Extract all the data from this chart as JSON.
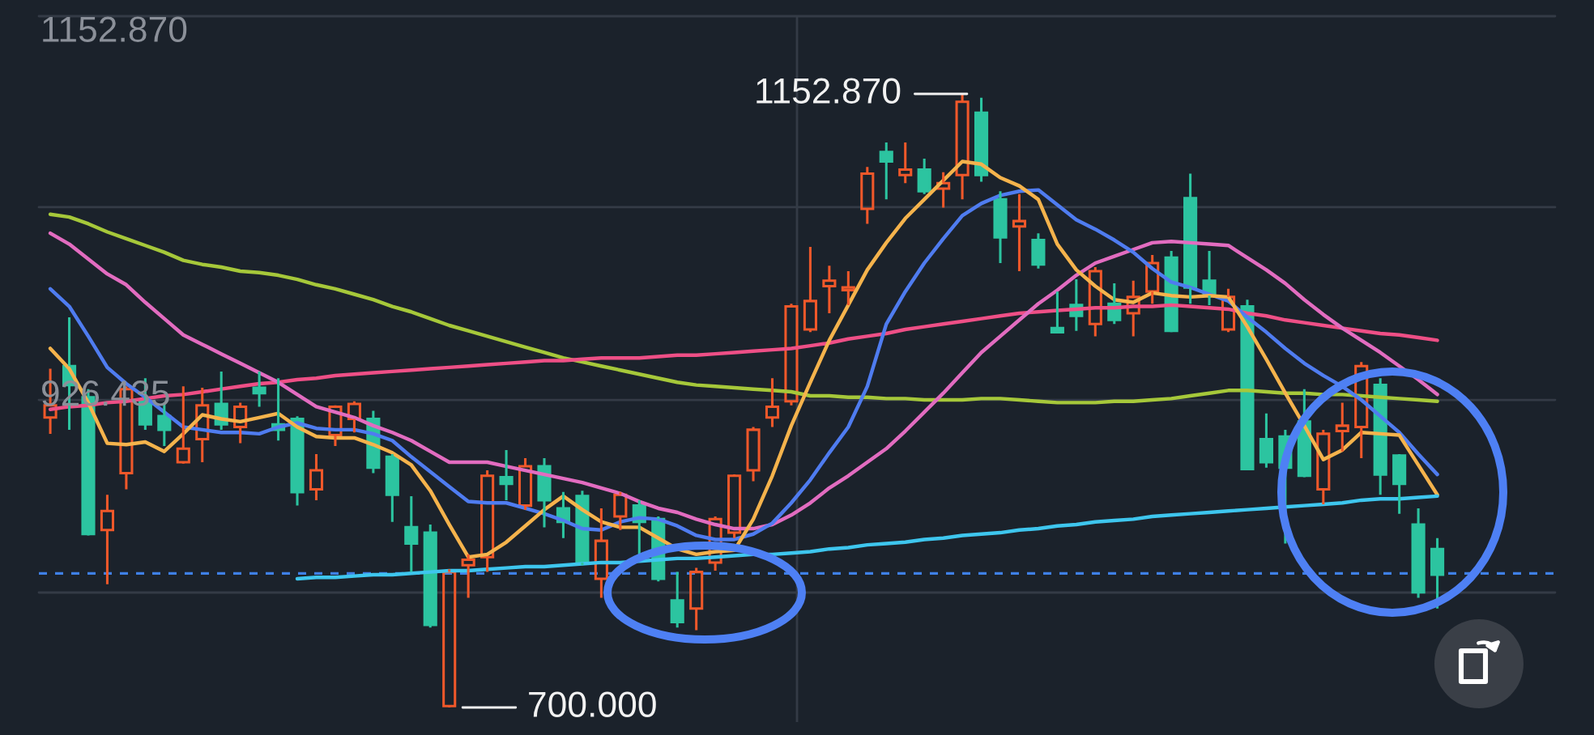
{
  "chart_data": {
    "type": "candlestick",
    "categories": [
      null,
      null,
      null,
      null,
      null,
      null,
      null,
      null,
      null,
      null,
      null,
      null,
      null,
      null,
      null,
      null,
      null,
      null,
      null,
      null,
      null,
      null,
      null,
      null,
      null,
      null,
      null,
      null,
      null,
      null,
      null,
      null,
      null,
      null,
      null,
      null,
      null,
      null,
      null,
      null,
      null,
      null,
      null,
      null,
      null,
      null,
      null,
      null,
      null,
      null,
      null,
      null,
      null,
      null,
      null,
      null,
      null,
      null,
      null,
      null,
      null,
      null,
      null,
      null,
      null,
      null,
      null,
      null,
      null,
      null,
      null,
      null,
      null,
      null
    ],
    "ohlc": [
      [
        914,
        950,
        902,
        923
      ],
      [
        952,
        988,
        905,
        938
      ],
      [
        929,
        935,
        827,
        828
      ],
      [
        831,
        857,
        791,
        845
      ],
      [
        873,
        937,
        861,
        935
      ],
      [
        926,
        943,
        905,
        909
      ],
      [
        915,
        925,
        893,
        905
      ],
      [
        881,
        937,
        880,
        891
      ],
      [
        898,
        936,
        881,
        923
      ],
      [
        924,
        948,
        905,
        909
      ],
      [
        907,
        925,
        895,
        922
      ],
      [
        936,
        948,
        922,
        932
      ],
      [
        909,
        943,
        897,
        905
      ],
      [
        913,
        915,
        849,
        859
      ],
      [
        861,
        887,
        853,
        875
      ],
      [
        901,
        923,
        893,
        922
      ],
      [
        913,
        926,
        903,
        924
      ],
      [
        913,
        919,
        873,
        877
      ],
      [
        885,
        887,
        837,
        857
      ],
      [
        833,
        856,
        800,
        821
      ],
      [
        829,
        835,
        759,
        761
      ],
      [
        701,
        802,
        700,
        800
      ],
      [
        805,
        813,
        781,
        809
      ],
      [
        811,
        875,
        800,
        871
      ],
      [
        870,
        890,
        853,
        865
      ],
      [
        849,
        884,
        846,
        878
      ],
      [
        878,
        884,
        833,
        853
      ],
      [
        847,
        859,
        825,
        837
      ],
      [
        856,
        860,
        805,
        807
      ],
      [
        795,
        847,
        781,
        823
      ],
      [
        841,
        859,
        831,
        857
      ],
      [
        849,
        853,
        811,
        837
      ],
      [
        839,
        841,
        793,
        795
      ],
      [
        779,
        800,
        759,
        763
      ],
      [
        773,
        803,
        757,
        800
      ],
      [
        807,
        841,
        801,
        839
      ],
      [
        829,
        872,
        825,
        871
      ],
      [
        875,
        907,
        867,
        905
      ],
      [
        914,
        943,
        907,
        922
      ],
      [
        926,
        998,
        923,
        996
      ],
      [
        979,
        1040,
        977,
        1000
      ],
      [
        1011,
        1026,
        991,
        1015
      ],
      [
        1008,
        1022,
        997,
        1010
      ],
      [
        1068,
        1099,
        1057,
        1094
      ],
      [
        1110,
        1117,
        1075,
        1103
      ],
      [
        1093,
        1117,
        1087,
        1097
      ],
      [
        1097,
        1105,
        1079,
        1081
      ],
      [
        1083,
        1095,
        1069,
        1087
      ],
      [
        1093,
        1152.87,
        1075,
        1147
      ],
      [
        1139,
        1150,
        1088,
        1093
      ],
      [
        1075,
        1081,
        1028,
        1047
      ],
      [
        1055,
        1079,
        1022,
        1059
      ],
      [
        1045,
        1050,
        1024,
        1027
      ],
      [
        980,
        1007,
        976,
        977
      ],
      [
        997,
        1016,
        978,
        989
      ],
      [
        983,
        1025,
        974,
        1022
      ],
      [
        998,
        1013,
        983,
        986
      ],
      [
        991,
        1015,
        974,
        1003
      ],
      [
        1007,
        1034,
        998,
        1028
      ],
      [
        1032,
        1037,
        977,
        978
      ],
      [
        1076,
        1094,
        998,
        1010
      ],
      [
        1015,
        1037,
        997,
        1004
      ],
      [
        979,
        1009,
        977,
        1003
      ],
      [
        996,
        1001,
        875,
        876
      ],
      [
        898,
        917,
        877,
        881
      ],
      [
        900,
        905,
        821,
        877
      ],
      [
        911,
        935,
        870,
        871
      ],
      [
        861,
        905,
        850,
        902
      ],
      [
        904,
        925,
        889,
        908
      ],
      [
        907,
        955,
        884,
        952
      ],
      [
        938,
        943,
        857,
        872
      ],
      [
        886,
        887,
        843,
        865
      ],
      [
        835,
        847,
        781,
        785
      ],
      [
        817,
        825,
        773,
        798
      ]
    ],
    "colors": [
      "#f0582a",
      "#2cc4a0",
      "#2cc4a0",
      "#f0582a",
      "#f0582a",
      "#2cc4a0",
      "#2cc4a0",
      "#f0582a",
      "#f0582a",
      "#2cc4a0",
      "#f0582a",
      "#2cc4a0",
      "#2cc4a0",
      "#2cc4a0",
      "#f0582a",
      "#f0582a",
      "#f0582a",
      "#2cc4a0",
      "#2cc4a0",
      "#2cc4a0",
      "#2cc4a0",
      "#f0582a",
      "#f0582a",
      "#f0582a",
      "#2cc4a0",
      "#f0582a",
      "#2cc4a0",
      "#2cc4a0",
      "#2cc4a0",
      "#f0582a",
      "#f0582a",
      "#2cc4a0",
      "#2cc4a0",
      "#2cc4a0",
      "#f0582a",
      "#f0582a",
      "#f0582a",
      "#f0582a",
      "#f0582a",
      "#f0582a",
      "#f0582a",
      "#f0582a",
      "#f0582a",
      "#f0582a",
      "#2cc4a0",
      "#f0582a",
      "#2cc4a0",
      "#f0582a",
      "#f0582a",
      "#2cc4a0",
      "#2cc4a0",
      "#f0582a",
      "#2cc4a0",
      "#2cc4a0",
      "#2cc4a0",
      "#f0582a",
      "#2cc4a0",
      "#f0582a",
      "#f0582a",
      "#2cc4a0",
      "#2cc4a0",
      "#2cc4a0",
      "#f0582a",
      "#2cc4a0",
      "#2cc4a0",
      "#2cc4a0",
      "#2cc4a0",
      "#f0582a",
      "#f0582a",
      "#f0582a",
      "#2cc4a0",
      "#2cc4a0",
      "#2cc4a0",
      "#2cc4a0"
    ],
    "series": [
      {
        "type": "line",
        "color": "#a6c83a",
        "values": [
          1064,
          1062,
          1057,
          1051,
          1046,
          1041,
          1036,
          1030,
          1027,
          1025,
          1022,
          1021,
          1019,
          1016,
          1012,
          1009,
          1005,
          1001,
          996,
          992,
          987,
          982,
          978,
          974,
          970,
          966,
          962,
          958,
          955,
          952,
          949,
          946,
          943,
          940,
          938,
          937,
          936,
          935,
          934,
          933,
          930,
          930,
          929,
          929,
          928,
          928,
          927,
          927,
          927,
          928,
          928,
          927,
          926,
          925,
          925,
          925,
          926,
          926,
          927,
          928,
          930,
          932,
          934,
          934,
          933,
          932,
          932,
          931,
          931,
          930,
          929,
          928,
          927,
          926
        ]
      },
      {
        "type": "line",
        "color": "#ee4f86",
        "values": [
          920,
          922,
          923,
          925,
          926,
          928,
          930,
          931,
          933,
          935,
          937,
          939,
          940,
          942,
          943,
          945,
          946,
          947,
          948,
          949,
          950,
          951,
          952,
          953,
          954,
          955,
          956,
          956,
          957,
          958,
          958,
          958,
          959,
          960,
          960,
          961,
          962,
          963,
          964,
          965,
          967,
          969,
          972,
          974,
          976,
          979,
          981,
          983,
          985,
          987,
          989,
          991,
          992,
          993,
          994,
          995,
          995,
          996,
          996,
          997,
          996,
          995,
          994,
          991,
          989,
          986,
          984,
          982,
          980,
          978,
          976,
          975,
          973,
          971
        ]
      },
      {
        "type": "line",
        "color": "#e26cc0",
        "values": [
          1050,
          1042,
          1031,
          1020,
          1012,
          999,
          987,
          975,
          968,
          961,
          954,
          947,
          940,
          931,
          922,
          918,
          914,
          908,
          903,
          897,
          889,
          881,
          881,
          881,
          878,
          875,
          872,
          869,
          866,
          862,
          858,
          852,
          847,
          844,
          839,
          835,
          832,
          832,
          835,
          842,
          851,
          862,
          871,
          881,
          891,
          904,
          918,
          932,
          947,
          962,
          974,
          986,
          998,
          1008,
          1019,
          1028,
          1033,
          1038,
          1043,
          1044,
          1043,
          1042,
          1041,
          1032,
          1023,
          1013,
          1001,
          990,
          980,
          971,
          962,
          952,
          942,
          931
        ]
      },
      {
        "type": "line",
        "color": "#4f7cf0",
        "values": [
          1009,
          996,
          974,
          951,
          939,
          929,
          918,
          907,
          905,
          903,
          903,
          902,
          907,
          910,
          906,
          905,
          905,
          902,
          897,
          885,
          874,
          863,
          852,
          851,
          851,
          847,
          843,
          838,
          832,
          831,
          837,
          840,
          839,
          834,
          827,
          824,
          824,
          828,
          836,
          851,
          868,
          888,
          907,
          937,
          983,
          1007,
          1028,
          1046,
          1063,
          1072,
          1078,
          1081,
          1082,
          1071,
          1060,
          1053,
          1045,
          1036,
          1024,
          1014,
          1010,
          1005,
          1000,
          988,
          977,
          965,
          954,
          945,
          937,
          927,
          915,
          903,
          887,
          872
        ]
      },
      {
        "type": "line",
        "color": "#f5b34c",
        "values": [
          965,
          950,
          925,
          895,
          894,
          896,
          889,
          902,
          916,
          913,
          911,
          914,
          917,
          907,
          900,
          899,
          899,
          894,
          888,
          879,
          860,
          835,
          811,
          813,
          822,
          834,
          846,
          856,
          846,
          837,
          833,
          833,
          825,
          817,
          813,
          815,
          816,
          839,
          871,
          908,
          940,
          971,
          997,
          1023,
          1043,
          1061,
          1075,
          1089,
          1103,
          1101,
          1091,
          1085,
          1075,
          1042,
          1023,
          1011,
          1001,
          999,
          1006,
          1004,
          1003,
          1004,
          1003,
          981,
          957,
          932,
          908,
          883,
          890,
          903,
          902,
          901,
          879,
          857
        ]
      },
      {
        "type": "line",
        "color": "#3ec6ee",
        "values": [
          null,
          null,
          null,
          null,
          null,
          null,
          null,
          null,
          null,
          null,
          null,
          null,
          null,
          795,
          796,
          796,
          797,
          798,
          798,
          799,
          800,
          801,
          801,
          802,
          803,
          804,
          804,
          805,
          806,
          807,
          807,
          808,
          809,
          810,
          810,
          811,
          812,
          813,
          813,
          814,
          815,
          817,
          818,
          820,
          821,
          822,
          824,
          825,
          827,
          828,
          829,
          831,
          832,
          834,
          835,
          837,
          838,
          839,
          841,
          842,
          843,
          844,
          845,
          846,
          847,
          848,
          849,
          850,
          851,
          853,
          854,
          854,
          855,
          856
        ]
      }
    ],
    "grid": "y",
    "ref_lines": [
      {
        "axis": "y",
        "value": 799,
        "color": "#3f80e6",
        "line_style": "dashed"
      }
    ],
    "annotations": [
      "1152.870",
      "926.435",
      "1152.870",
      "700.000"
    ]
  }
}
